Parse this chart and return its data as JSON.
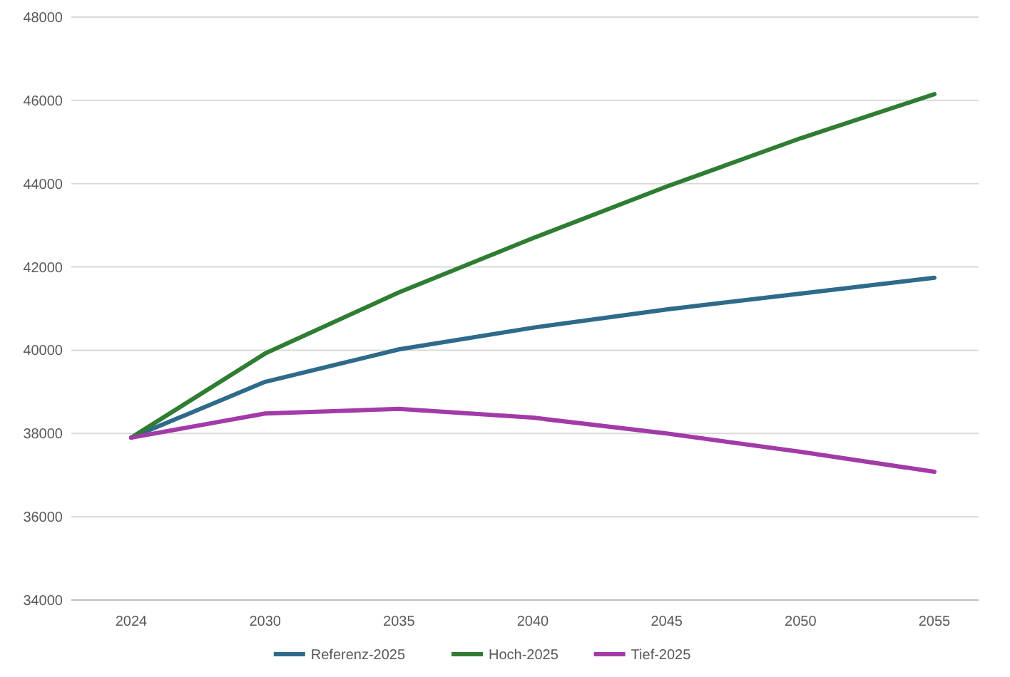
{
  "chart_data": {
    "type": "line",
    "categories": [
      "2024",
      "2030",
      "2035",
      "2040",
      "2045",
      "2050",
      "2055"
    ],
    "series": [
      {
        "name": "Referenz-2025",
        "color": "#2e6b8a",
        "values": [
          37900,
          39240,
          40020,
          40540,
          40980,
          41360,
          41740
        ]
      },
      {
        "name": "Hoch-2025",
        "color": "#2e7d32",
        "values": [
          37900,
          39920,
          41390,
          42690,
          43930,
          45090,
          46150
        ]
      },
      {
        "name": "Tief-2025",
        "color": "#a23ba8",
        "values": [
          37900,
          38480,
          38590,
          38380,
          38000,
          37560,
          37080
        ]
      }
    ],
    "ylim": [
      34000,
      48000
    ],
    "yticks": [
      34000,
      36000,
      38000,
      40000,
      42000,
      44000,
      46000,
      48000
    ],
    "grid": "y",
    "legend": "bottom",
    "marker": "none",
    "line_style": "solid"
  }
}
